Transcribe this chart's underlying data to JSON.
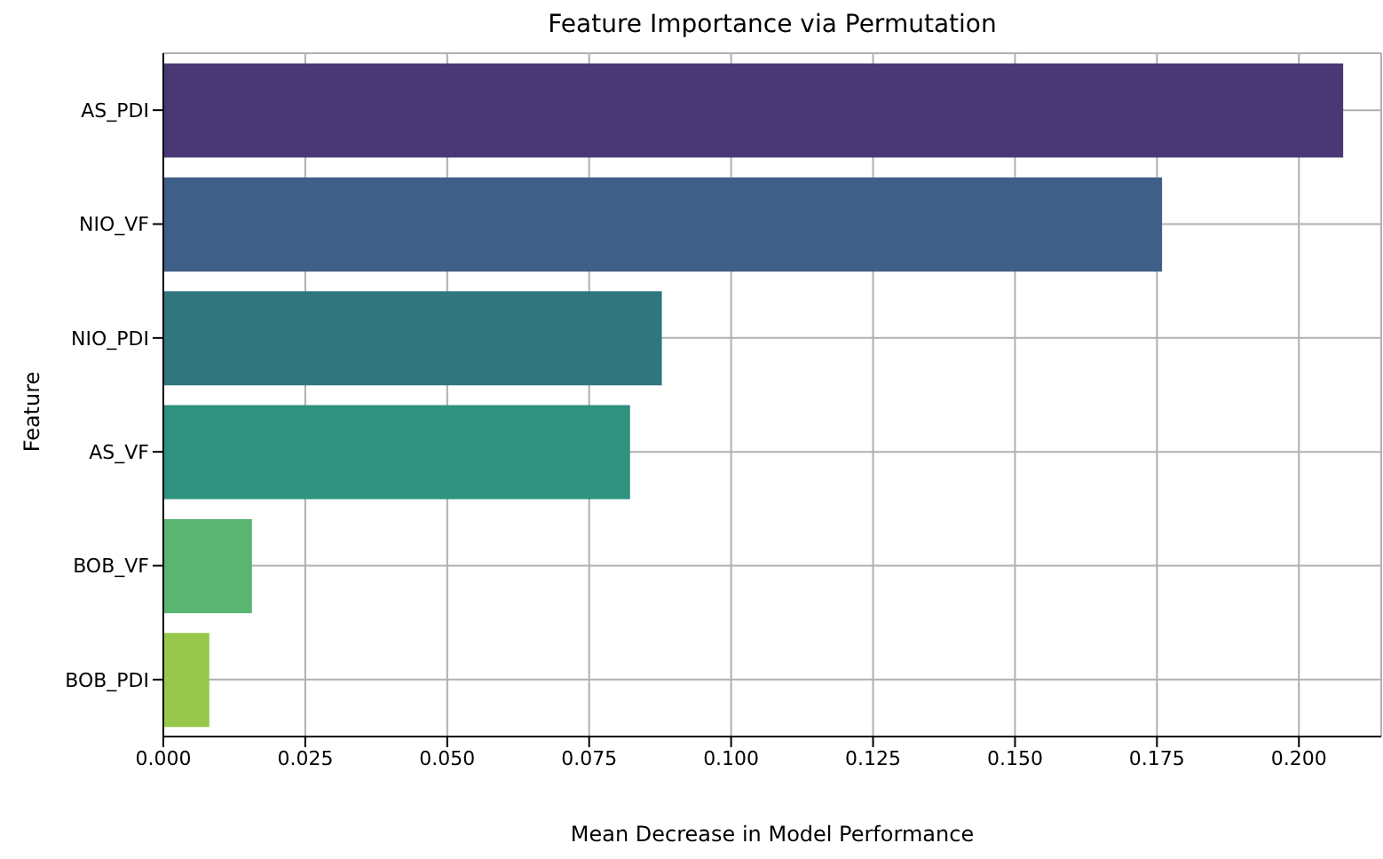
{
  "chart_data": {
    "type": "bar",
    "orientation": "horizontal",
    "title": "Feature Importance via Permutation",
    "xlabel": "Mean Decrease in Model Performance",
    "ylabel": "Feature",
    "categories": [
      "AS_PDI",
      "NIO_VF",
      "NIO_PDI",
      "AS_VF",
      "BOB_VF",
      "BOB_PDI"
    ],
    "values": [
      0.2078,
      0.1759,
      0.0878,
      0.0822,
      0.0156,
      0.0081
    ],
    "colors": [
      "#493875",
      "#3e5f87",
      "#2f767e",
      "#2f927f",
      "#59b571",
      "#98c84b"
    ],
    "xlim": [
      0,
      0.2145
    ],
    "xticks": [
      {
        "value": 0,
        "label": "0.000"
      },
      {
        "value": 0.025,
        "label": "0.025"
      },
      {
        "value": 0.05,
        "label": "0.050"
      },
      {
        "value": 0.075,
        "label": "0.075"
      },
      {
        "value": 0.1,
        "label": "0.100"
      },
      {
        "value": 0.125,
        "label": "0.125"
      },
      {
        "value": 0.15,
        "label": "0.150"
      },
      {
        "value": 0.175,
        "label": "0.175"
      },
      {
        "value": 0.2,
        "label": "0.200"
      }
    ],
    "grid": true
  }
}
